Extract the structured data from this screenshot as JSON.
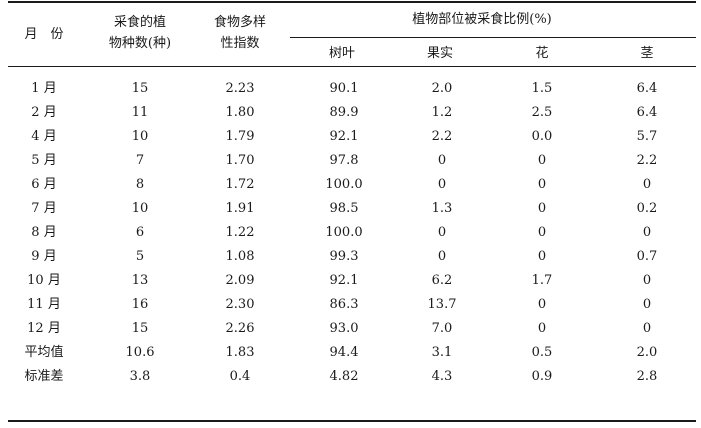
{
  "table": {
    "header": {
      "month": "月　份",
      "species_line1": "采食的植",
      "species_line2": "物种数(种)",
      "diversity_line1": "食物多样",
      "diversity_line2": "性指数",
      "parts_group": "植物部位被采食比例(%)",
      "leaf": "树叶",
      "fruit": "果实",
      "flower": "花",
      "stem": "茎"
    },
    "rows": [
      {
        "month": "1 月",
        "species": "15",
        "diversity": "2.23",
        "leaf": "90.1",
        "fruit": "2.0",
        "flower": "1.5",
        "stem": "6.4"
      },
      {
        "month": "2 月",
        "species": "11",
        "diversity": "1.80",
        "leaf": "89.9",
        "fruit": "1.2",
        "flower": "2.5",
        "stem": "6.4"
      },
      {
        "month": "4 月",
        "species": "10",
        "diversity": "1.79",
        "leaf": "92.1",
        "fruit": "2.2",
        "flower": "0.0",
        "stem": "5.7"
      },
      {
        "month": "5 月",
        "species": "7",
        "diversity": "1.70",
        "leaf": "97.8",
        "fruit": "0",
        "flower": "0",
        "stem": "2.2"
      },
      {
        "month": "6 月",
        "species": "8",
        "diversity": "1.72",
        "leaf": "100.0",
        "fruit": "0",
        "flower": "0",
        "stem": "0"
      },
      {
        "month": "7 月",
        "species": "10",
        "diversity": "1.91",
        "leaf": "98.5",
        "fruit": "1.3",
        "flower": "0",
        "stem": "0.2"
      },
      {
        "month": "8 月",
        "species": "6",
        "diversity": "1.22",
        "leaf": "100.0",
        "fruit": "0",
        "flower": "0",
        "stem": "0"
      },
      {
        "month": "9 月",
        "species": "5",
        "diversity": "1.08",
        "leaf": "99.3",
        "fruit": "0",
        "flower": "0",
        "stem": "0.7"
      },
      {
        "month": "10 月",
        "species": "13",
        "diversity": "2.09",
        "leaf": "92.1",
        "fruit": "6.2",
        "flower": "1.7",
        "stem": "0"
      },
      {
        "month": "11 月",
        "species": "16",
        "diversity": "2.30",
        "leaf": "86.3",
        "fruit": "13.7",
        "flower": "0",
        "stem": "0"
      },
      {
        "month": "12 月",
        "species": "15",
        "diversity": "2.26",
        "leaf": "93.0",
        "fruit": "7.0",
        "flower": "0",
        "stem": "0"
      },
      {
        "month": "平均值",
        "species": "10.6",
        "diversity": "1.83",
        "leaf": "94.4",
        "fruit": "3.1",
        "flower": "0.5",
        "stem": "2.0"
      },
      {
        "month": "标准差",
        "species": "3.8",
        "diversity": "0.4",
        "leaf": "4.82",
        "fruit": "4.3",
        "flower": "0.9",
        "stem": "2.8"
      }
    ]
  }
}
